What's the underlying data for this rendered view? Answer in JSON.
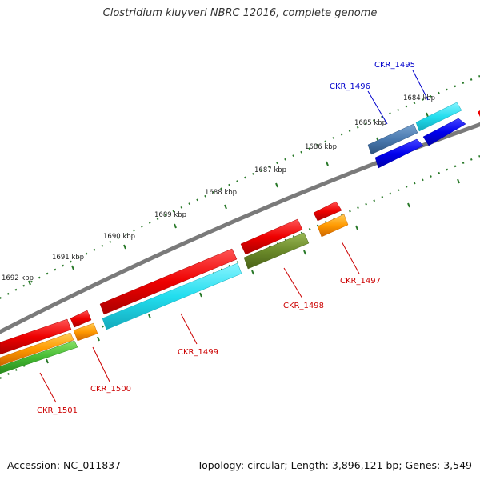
{
  "title": "Clostridium kluyveri NBRC 12016, complete genome",
  "footer": {
    "accession": "Accession: NC_011837",
    "summary": "Topology: circular; Length: 3,896,121 bp; Genes: 3,549"
  },
  "kbp_labels": [
    "1684 kbp",
    "1685 kbp",
    "1686 kbp",
    "1687 kbp",
    "1688 kbp",
    "1689 kbp",
    "1690 kbp",
    "1691 kbp",
    "1692 kbp"
  ],
  "genes": [
    {
      "id": "CKR_1495",
      "color": "#0000cc"
    },
    {
      "id": "CKR_1496",
      "color": "#0000cc"
    },
    {
      "id": "CKR_1497",
      "color": "#cc0000"
    },
    {
      "id": "CKR_1498",
      "color": "#cc0000"
    },
    {
      "id": "CKR_1499",
      "color": "#cc0000"
    },
    {
      "id": "CKR_1500",
      "color": "#cc0000"
    },
    {
      "id": "CKR_1501",
      "color": "#cc0000"
    }
  ],
  "colors": {
    "backbone": "#7a7a7a",
    "tick": "#2a7a2a",
    "cds_forward": "#0000ee",
    "cds_reverse": "#ee0000",
    "steelblue": "#4a7ab0",
    "cyan": "#22ddee",
    "orange": "#ff9900",
    "olive": "#6b8a2a",
    "green": "#44bb33"
  }
}
